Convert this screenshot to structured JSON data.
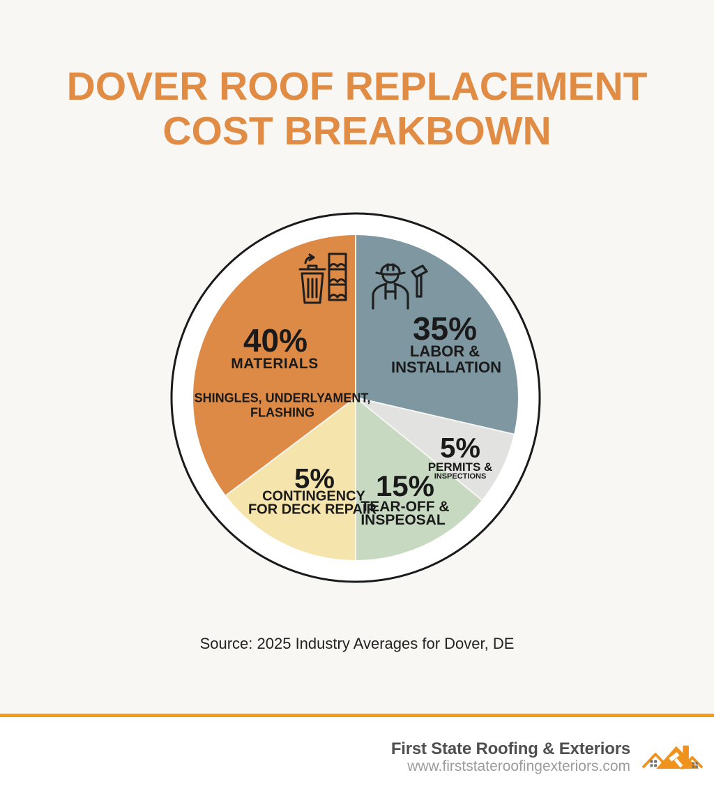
{
  "title": {
    "line1": "DOVER ROOF REPLACEMENT",
    "line2": "COST BREAKBOWN"
  },
  "chart_data": {
    "type": "pie",
    "title": "DOVER ROOF REPLACEMENT COST BREAKBOWN",
    "legend_position": "labels-inside-slices",
    "start_angle_deg_clockwise_from_top": 0,
    "segments": [
      {
        "id": "labor",
        "value": 35,
        "pct": "35%",
        "name_lines": [
          "LABOR &",
          "INSTALLATION"
        ],
        "color": "#7E97A1",
        "start_deg": 0,
        "end_deg": 103,
        "icon": "construction-worker-hammer-icon"
      },
      {
        "id": "permits",
        "value": 5,
        "pct": "5%",
        "name_lines": [
          "PERMITS &",
          "INSPECTIONS"
        ],
        "color": "#E2E2E0",
        "start_deg": 103,
        "end_deg": 129
      },
      {
        "id": "tearoff",
        "value": 15,
        "pct": "15%",
        "name_lines": [
          "TEAR-OFF &",
          "INSPEOSAL"
        ],
        "color": "#C7D9C0",
        "start_deg": 129,
        "end_deg": 180
      },
      {
        "id": "contingency",
        "value": 5,
        "pct": "5%",
        "name_lines": [
          "CONTINGENCY",
          "FOR DECK REPAIR"
        ],
        "color": "#F6E4AD",
        "start_deg": 180,
        "end_deg": 233
      },
      {
        "id": "materials",
        "value": 40,
        "pct": "40%",
        "name_lines": [
          "MATERIALS"
        ],
        "sub_lines": [
          "SHINGLES, UNDERLYAMENT,",
          "FLASHING"
        ],
        "color": "#DC8A45",
        "start_deg": 233,
        "end_deg": 360,
        "icon": "trash-and-shingles-icon"
      }
    ],
    "ring": {
      "outer_stroke": "#1A1A1A",
      "inner_fill": "#FFFFFF"
    }
  },
  "source": {
    "text": "Source: 2025 Industry Averages for Dover, DE"
  },
  "footer": {
    "company": "First State Roofing & Exteriors",
    "website": "www.firststateroofingexteriors.com",
    "logo": "roofline-houses-logo"
  },
  "colors": {
    "background": "#F8F7F4",
    "title": "#E18C44",
    "divider": "#F59A1B",
    "label_text": "#1A1A1A"
  }
}
